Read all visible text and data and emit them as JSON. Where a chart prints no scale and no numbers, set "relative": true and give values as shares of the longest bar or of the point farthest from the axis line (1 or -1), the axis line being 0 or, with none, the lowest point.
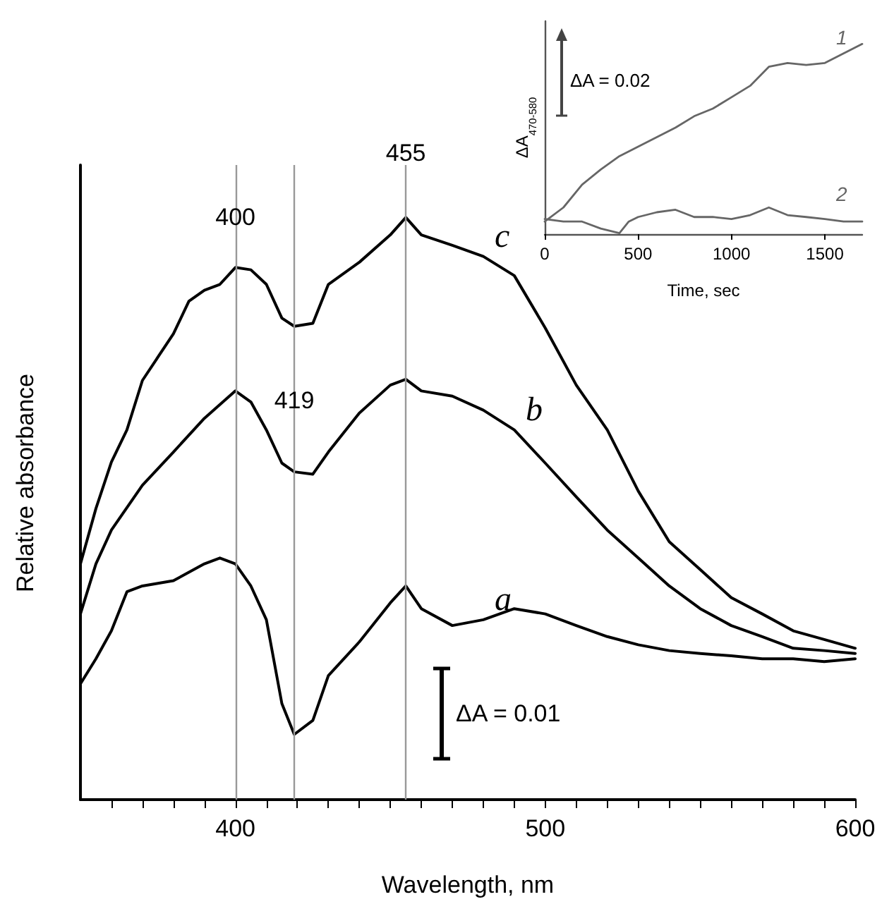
{
  "chart_data": [
    {
      "type": "line",
      "xlabel": "Wavelength, nm",
      "ylabel": "Relative absorbance",
      "relative": true,
      "xlim": [
        350,
        600
      ],
      "xticks": [
        {
          "value": 360,
          "label": null
        },
        {
          "value": 370,
          "label": null
        },
        {
          "value": 380,
          "label": null
        },
        {
          "value": 390,
          "label": null
        },
        400,
        {
          "value": 410,
          "label": null
        },
        {
          "value": 420,
          "label": null
        },
        {
          "value": 430,
          "label": null
        },
        {
          "value": 440,
          "label": null
        },
        {
          "value": 450,
          "label": null
        },
        {
          "value": 460,
          "label": null
        },
        {
          "value": 470,
          "label": null
        },
        {
          "value": 480,
          "label": null
        },
        {
          "value": 490,
          "label": null
        },
        500,
        {
          "value": 510,
          "label": null
        },
        {
          "value": 520,
          "label": null
        },
        {
          "value": 530,
          "label": null
        },
        {
          "value": 540,
          "label": null
        },
        {
          "value": 550,
          "label": null
        },
        {
          "value": 560,
          "label": null
        },
        {
          "value": 570,
          "label": null
        },
        {
          "value": 580,
          "label": null
        },
        {
          "value": 590,
          "label": null
        },
        600
      ],
      "grid": false,
      "legend": false,
      "marker": "none",
      "line_style": "solid",
      "series": [
        {
          "name": "c",
          "color": "#000000",
          "x": [
            350,
            355,
            360,
            365,
            370,
            375,
            380,
            385,
            390,
            395,
            400,
            405,
            410,
            415,
            419,
            425,
            430,
            440,
            450,
            455,
            460,
            470,
            480,
            490,
            500,
            510,
            520,
            530,
            540,
            550,
            560,
            570,
            580,
            590,
            600
          ],
          "values": [
            0.405,
            0.5,
            0.58,
            0.635,
            0.72,
            0.76,
            0.8,
            0.856,
            0.875,
            0.885,
            0.914,
            0.91,
            0.885,
            0.827,
            0.813,
            0.818,
            0.885,
            0.923,
            0.97,
            1.0,
            0.97,
            0.952,
            0.933,
            0.9,
            0.81,
            0.712,
            0.635,
            0.53,
            0.443,
            0.395,
            0.347,
            0.319,
            0.29,
            0.275,
            0.26
          ]
        },
        {
          "name": "b",
          "color": "#000000",
          "x": [
            350,
            355,
            360,
            370,
            380,
            390,
            400,
            405,
            410,
            415,
            419,
            425,
            430,
            440,
            450,
            455,
            460,
            470,
            480,
            490,
            500,
            510,
            520,
            530,
            540,
            550,
            560,
            570,
            580,
            590,
            600
          ],
          "values": [
            0.319,
            0.405,
            0.463,
            0.54,
            0.597,
            0.655,
            0.702,
            0.683,
            0.635,
            0.578,
            0.563,
            0.559,
            0.597,
            0.664,
            0.712,
            0.722,
            0.702,
            0.693,
            0.669,
            0.635,
            0.578,
            0.52,
            0.463,
            0.415,
            0.367,
            0.328,
            0.299,
            0.28,
            0.26,
            0.256,
            0.251
          ]
        },
        {
          "name": "a",
          "color": "#000000",
          "x": [
            350,
            355,
            360,
            365,
            370,
            380,
            390,
            395,
            400,
            405,
            410,
            415,
            419,
            425,
            430,
            440,
            450,
            455,
            460,
            470,
            480,
            490,
            500,
            510,
            520,
            530,
            540,
            550,
            560,
            570,
            580,
            590,
            600
          ],
          "values": [
            0.199,
            0.242,
            0.29,
            0.357,
            0.367,
            0.376,
            0.405,
            0.415,
            0.405,
            0.367,
            0.309,
            0.165,
            0.112,
            0.136,
            0.213,
            0.271,
            0.338,
            0.367,
            0.328,
            0.299,
            0.309,
            0.328,
            0.319,
            0.299,
            0.28,
            0.266,
            0.256,
            0.251,
            0.247,
            0.242,
            0.242,
            0.237,
            0.242
          ]
        }
      ],
      "ref_lines": [
        {
          "axis": "x",
          "value": 400,
          "color": "#999999"
        },
        {
          "axis": "x",
          "value": 419,
          "color": "#999999"
        },
        {
          "axis": "x",
          "value": 455,
          "color": "#999999"
        }
      ],
      "annotations": [
        {
          "text": "400",
          "x": 400,
          "y": 0.98
        },
        {
          "text": "419",
          "x": 419,
          "y": 0.665
        },
        {
          "text": "455",
          "x": 455,
          "y": 1.09
        },
        "ΔA = 0.01"
      ]
    },
    {
      "type": "line",
      "xlabel": "Time, sec",
      "ylabel": "ΔA$_{470-580}$",
      "relative": true,
      "xlim": [
        0,
        1700
      ],
      "xticks": [
        0,
        500,
        1000,
        1500
      ],
      "grid": false,
      "legend": false,
      "marker": "none",
      "line_style": "solid",
      "series": [
        {
          "name": "1",
          "color": "#666666",
          "x": [
            0,
            100,
            200,
            300,
            400,
            500,
            600,
            700,
            800,
            900,
            1000,
            1100,
            1200,
            1300,
            1400,
            1500,
            1600,
            1700
          ],
          "values": [
            0.066,
            0.14,
            0.26,
            0.34,
            0.41,
            0.46,
            0.51,
            0.56,
            0.62,
            0.66,
            0.72,
            0.78,
            0.88,
            0.9,
            0.89,
            0.9,
            0.95,
            1.0
          ]
        },
        {
          "name": "2",
          "color": "#666666",
          "x": [
            0,
            100,
            200,
            300,
            400,
            450,
            500,
            600,
            700,
            800,
            900,
            1000,
            1100,
            1200,
            1300,
            1400,
            1500,
            1600,
            1700
          ],
          "values": [
            0.079,
            0.066,
            0.066,
            0.029,
            0.005,
            0.066,
            0.09,
            0.115,
            0.128,
            0.09,
            0.09,
            0.079,
            0.1,
            0.14,
            0.1,
            0.09,
            0.079,
            0.066,
            0.066
          ]
        }
      ],
      "annotations": [
        "ΔA = 0.02"
      ]
    }
  ]
}
